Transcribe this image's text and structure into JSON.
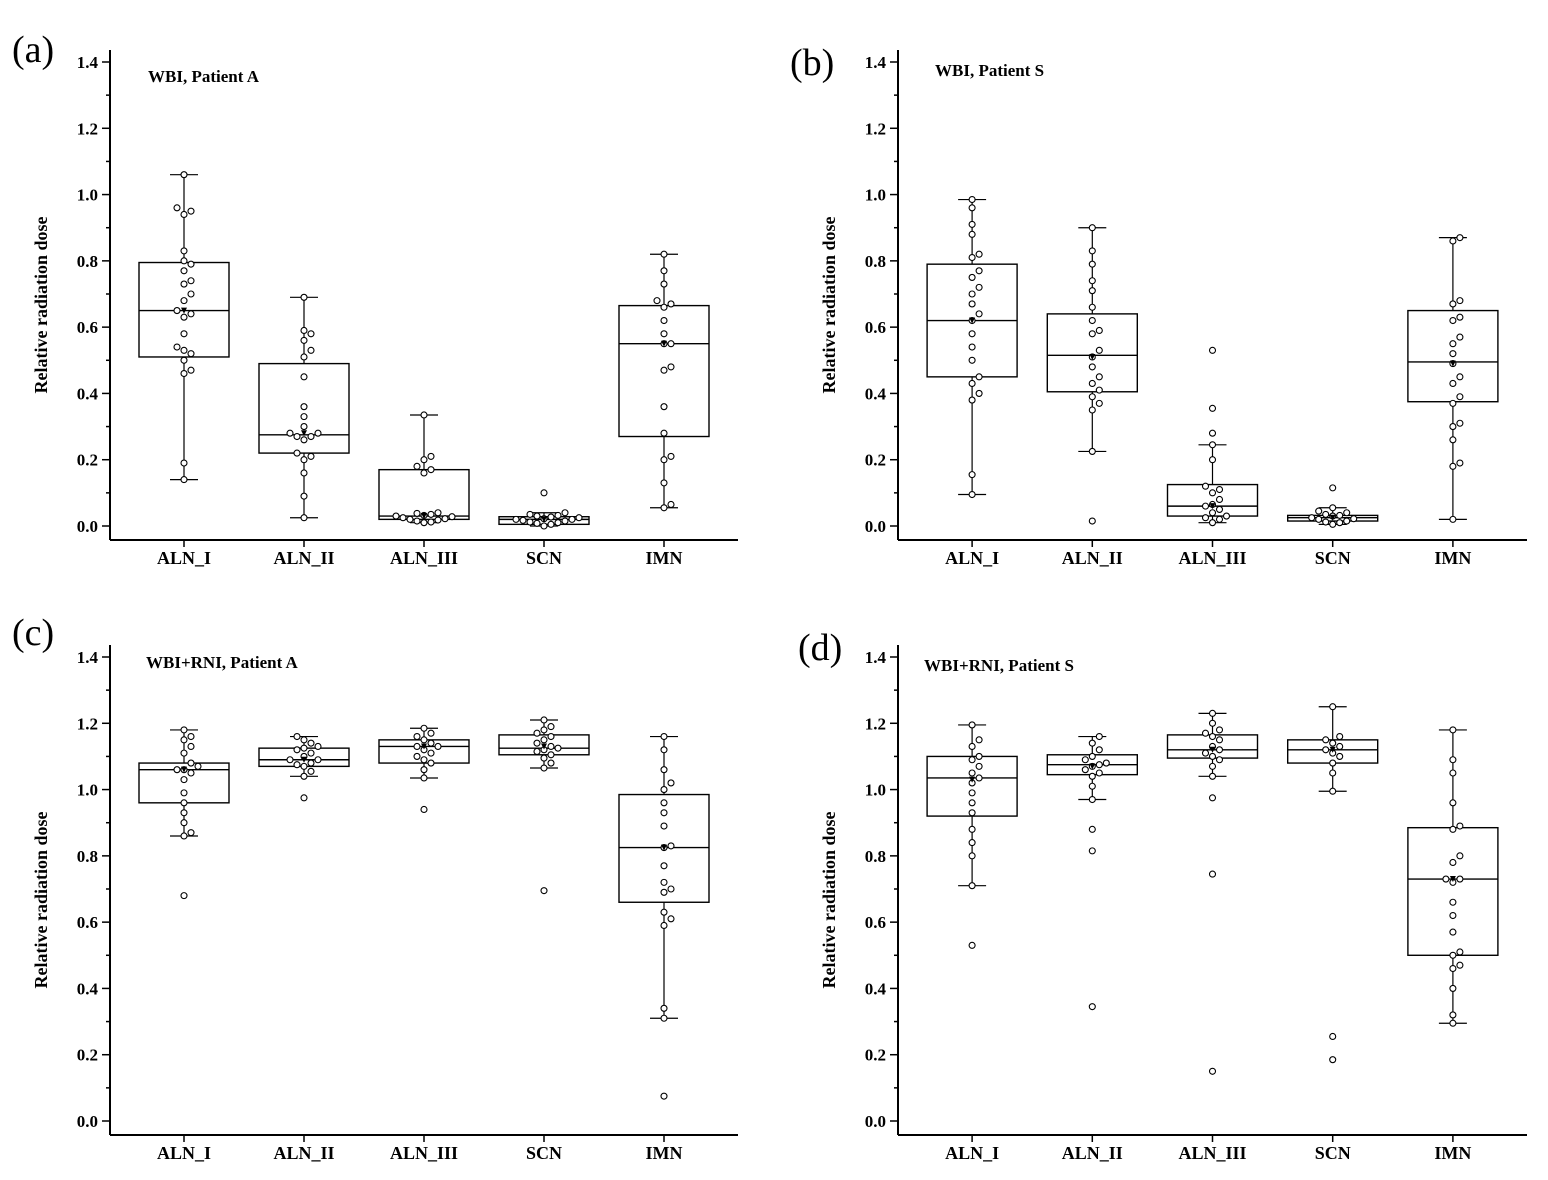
{
  "chart_data": [
    {
      "id": "a",
      "panel_label": "(a)",
      "type": "box",
      "title": "WBI, Patient A",
      "ylabel": "Relative radiation dose",
      "xlabel": "",
      "ylim": [
        -0.03,
        1.42
      ],
      "yticks": [
        "0.0",
        "0.2",
        "0.4",
        "0.6",
        "0.8",
        "1.0",
        "1.2",
        "1.4"
      ],
      "categories": [
        "ALN_I",
        "ALN_II",
        "ALN_III",
        "SCN",
        "IMN"
      ],
      "boxes": [
        {
          "q1": 0.51,
          "median": 0.65,
          "q3": 0.795,
          "mean": 0.65,
          "whisker_low": 0.14,
          "whisker_high": 1.06,
          "points": [
            0.14,
            0.19,
            0.46,
            0.47,
            0.5,
            0.52,
            0.53,
            0.54,
            0.58,
            0.63,
            0.64,
            0.65,
            0.68,
            0.7,
            0.73,
            0.74,
            0.77,
            0.79,
            0.8,
            0.83,
            0.94,
            0.95,
            0.96,
            1.06
          ]
        },
        {
          "q1": 0.22,
          "median": 0.275,
          "q3": 0.49,
          "mean": 0.28,
          "whisker_low": 0.025,
          "whisker_high": 0.69,
          "points": [
            0.025,
            0.09,
            0.16,
            0.2,
            0.21,
            0.22,
            0.26,
            0.27,
            0.27,
            0.28,
            0.28,
            0.3,
            0.33,
            0.36,
            0.45,
            0.51,
            0.53,
            0.56,
            0.58,
            0.59,
            0.69
          ]
        },
        {
          "q1": 0.02,
          "median": 0.03,
          "q3": 0.17,
          "mean": 0.03,
          "whisker_low": 0.01,
          "whisker_high": 0.335,
          "points": [
            0.01,
            0.012,
            0.015,
            0.018,
            0.02,
            0.022,
            0.025,
            0.028,
            0.03,
            0.032,
            0.035,
            0.038,
            0.04,
            0.16,
            0.17,
            0.18,
            0.2,
            0.21,
            0.335
          ]
        },
        {
          "q1": 0.005,
          "median": 0.02,
          "q3": 0.028,
          "mean": 0.02,
          "whisker_low": 0.0,
          "whisker_high": 0.04,
          "points": [
            0.0,
            0.005,
            0.008,
            0.01,
            0.012,
            0.015,
            0.017,
            0.02,
            0.02,
            0.022,
            0.025,
            0.027,
            0.03,
            0.032,
            0.035,
            0.04,
            0.1
          ]
        },
        {
          "q1": 0.27,
          "median": 0.55,
          "q3": 0.665,
          "mean": 0.55,
          "whisker_low": 0.055,
          "whisker_high": 0.82,
          "points": [
            0.055,
            0.065,
            0.13,
            0.2,
            0.21,
            0.28,
            0.36,
            0.47,
            0.48,
            0.55,
            0.55,
            0.58,
            0.62,
            0.66,
            0.67,
            0.68,
            0.73,
            0.77,
            0.82
          ]
        }
      ]
    },
    {
      "id": "b",
      "panel_label": "(b)",
      "type": "box",
      "title": "WBI, Patient S",
      "ylabel": "Relative radiation dose",
      "xlabel": "",
      "ylim": [
        -0.03,
        1.42
      ],
      "yticks": [
        "0.0",
        "0.2",
        "0.4",
        "0.6",
        "0.8",
        "1.0",
        "1.2",
        "1.4"
      ],
      "categories": [
        "ALN_I",
        "ALN_II",
        "ALN_III",
        "SCN",
        "IMN"
      ],
      "boxes": [
        {
          "q1": 0.45,
          "median": 0.62,
          "q3": 0.79,
          "mean": 0.62,
          "whisker_low": 0.095,
          "whisker_high": 0.985,
          "points": [
            0.095,
            0.155,
            0.38,
            0.4,
            0.43,
            0.45,
            0.5,
            0.54,
            0.58,
            0.62,
            0.64,
            0.67,
            0.7,
            0.72,
            0.75,
            0.77,
            0.81,
            0.82,
            0.88,
            0.91,
            0.96,
            0.985
          ]
        },
        {
          "q1": 0.405,
          "median": 0.515,
          "q3": 0.64,
          "mean": 0.51,
          "whisker_low": 0.225,
          "whisker_high": 0.9,
          "points": [
            0.015,
            0.225,
            0.35,
            0.37,
            0.39,
            0.41,
            0.43,
            0.45,
            0.48,
            0.51,
            0.53,
            0.58,
            0.59,
            0.62,
            0.66,
            0.71,
            0.74,
            0.79,
            0.83,
            0.9
          ]
        },
        {
          "q1": 0.03,
          "median": 0.06,
          "q3": 0.125,
          "mean": 0.06,
          "whisker_low": 0.01,
          "whisker_high": 0.245,
          "points": [
            0.01,
            0.02,
            0.025,
            0.03,
            0.04,
            0.05,
            0.06,
            0.065,
            0.08,
            0.1,
            0.11,
            0.12,
            0.2,
            0.245,
            0.28,
            0.355,
            0.53
          ]
        },
        {
          "q1": 0.015,
          "median": 0.025,
          "q3": 0.032,
          "mean": 0.025,
          "whisker_low": 0.005,
          "whisker_high": 0.055,
          "points": [
            0.005,
            0.01,
            0.012,
            0.015,
            0.02,
            0.022,
            0.025,
            0.03,
            0.032,
            0.035,
            0.04,
            0.045,
            0.055,
            0.115
          ]
        },
        {
          "q1": 0.375,
          "median": 0.495,
          "q3": 0.65,
          "mean": 0.49,
          "whisker_low": 0.02,
          "whisker_high": 0.87,
          "points": [
            0.02,
            0.18,
            0.19,
            0.26,
            0.3,
            0.31,
            0.37,
            0.39,
            0.43,
            0.45,
            0.49,
            0.52,
            0.55,
            0.57,
            0.62,
            0.63,
            0.67,
            0.68,
            0.86,
            0.87
          ]
        }
      ]
    },
    {
      "id": "c",
      "panel_label": "(c)",
      "type": "box",
      "title": "WBI+RNI, Patient A",
      "ylabel": "Relative radiation dose",
      "xlabel": "",
      "ylim": [
        -0.03,
        1.42
      ],
      "yticks": [
        "0.0",
        "0.2",
        "0.4",
        "0.6",
        "0.8",
        "1.0",
        "1.2",
        "1.4"
      ],
      "categories": [
        "ALN_I",
        "ALN_II",
        "ALN_III",
        "SCN",
        "IMN"
      ],
      "boxes": [
        {
          "q1": 0.96,
          "median": 1.06,
          "q3": 1.08,
          "mean": 1.06,
          "whisker_low": 0.86,
          "whisker_high": 1.18,
          "points": [
            0.68,
            0.86,
            0.87,
            0.9,
            0.93,
            0.96,
            0.99,
            1.03,
            1.05,
            1.06,
            1.06,
            1.07,
            1.08,
            1.11,
            1.13,
            1.15,
            1.16,
            1.18
          ]
        },
        {
          "q1": 1.07,
          "median": 1.09,
          "q3": 1.125,
          "mean": 1.09,
          "whisker_low": 1.04,
          "whisker_high": 1.16,
          "points": [
            0.975,
            1.04,
            1.055,
            1.07,
            1.075,
            1.08,
            1.09,
            1.09,
            1.1,
            1.11,
            1.12,
            1.125,
            1.13,
            1.14,
            1.15,
            1.16
          ]
        },
        {
          "q1": 1.08,
          "median": 1.13,
          "q3": 1.15,
          "mean": 1.13,
          "whisker_low": 1.035,
          "whisker_high": 1.185,
          "points": [
            0.94,
            1.035,
            1.06,
            1.08,
            1.09,
            1.1,
            1.11,
            1.12,
            1.13,
            1.13,
            1.14,
            1.15,
            1.16,
            1.17,
            1.185
          ]
        },
        {
          "q1": 1.105,
          "median": 1.125,
          "q3": 1.165,
          "mean": 1.13,
          "whisker_low": 1.065,
          "whisker_high": 1.21,
          "points": [
            0.695,
            1.065,
            1.08,
            1.095,
            1.105,
            1.115,
            1.12,
            1.125,
            1.13,
            1.14,
            1.15,
            1.16,
            1.17,
            1.18,
            1.19,
            1.21
          ]
        },
        {
          "q1": 0.66,
          "median": 0.825,
          "q3": 0.985,
          "mean": 0.825,
          "whisker_low": 0.31,
          "whisker_high": 1.16,
          "points": [
            0.075,
            0.31,
            0.34,
            0.59,
            0.61,
            0.63,
            0.69,
            0.7,
            0.72,
            0.77,
            0.825,
            0.83,
            0.89,
            0.93,
            0.96,
            1.0,
            1.02,
            1.06,
            1.12,
            1.16
          ]
        }
      ]
    },
    {
      "id": "d",
      "panel_label": "(d)",
      "type": "box",
      "title": "WBI+RNI, Patient S",
      "ylabel": "Relative radiation dose",
      "xlabel": "",
      "ylim": [
        -0.03,
        1.42
      ],
      "yticks": [
        "0.0",
        "0.2",
        "0.4",
        "0.6",
        "0.8",
        "1.0",
        "1.2",
        "1.4"
      ],
      "categories": [
        "ALN_I",
        "ALN_II",
        "ALN_III",
        "SCN",
        "IMN"
      ],
      "boxes": [
        {
          "q1": 0.92,
          "median": 1.035,
          "q3": 1.1,
          "mean": 1.03,
          "whisker_low": 0.71,
          "whisker_high": 1.195,
          "points": [
            0.53,
            0.71,
            0.8,
            0.84,
            0.88,
            0.93,
            0.96,
            0.99,
            1.02,
            1.035,
            1.05,
            1.07,
            1.09,
            1.1,
            1.13,
            1.15,
            1.195
          ]
        },
        {
          "q1": 1.045,
          "median": 1.075,
          "q3": 1.105,
          "mean": 1.07,
          "whisker_low": 0.97,
          "whisker_high": 1.16,
          "points": [
            0.345,
            0.815,
            0.88,
            0.97,
            1.01,
            1.04,
            1.05,
            1.06,
            1.07,
            1.075,
            1.08,
            1.09,
            1.1,
            1.12,
            1.14,
            1.16
          ]
        },
        {
          "q1": 1.095,
          "median": 1.12,
          "q3": 1.165,
          "mean": 1.12,
          "whisker_low": 1.04,
          "whisker_high": 1.23,
          "points": [
            0.15,
            0.745,
            0.975,
            1.04,
            1.07,
            1.09,
            1.1,
            1.11,
            1.12,
            1.13,
            1.15,
            1.16,
            1.17,
            1.18,
            1.2,
            1.23
          ]
        },
        {
          "q1": 1.08,
          "median": 1.12,
          "q3": 1.15,
          "mean": 1.12,
          "whisker_low": 0.995,
          "whisker_high": 1.25,
          "points": [
            0.185,
            0.255,
            0.995,
            1.05,
            1.08,
            1.1,
            1.11,
            1.12,
            1.13,
            1.14,
            1.15,
            1.16,
            1.25
          ]
        },
        {
          "q1": 0.5,
          "median": 0.73,
          "q3": 0.885,
          "mean": 0.73,
          "whisker_low": 0.295,
          "whisker_high": 1.18,
          "points": [
            0.295,
            0.32,
            0.4,
            0.46,
            0.47,
            0.5,
            0.51,
            0.57,
            0.62,
            0.66,
            0.72,
            0.73,
            0.73,
            0.78,
            0.8,
            0.88,
            0.89,
            0.96,
            1.05,
            1.09,
            1.18
          ]
        }
      ]
    }
  ]
}
